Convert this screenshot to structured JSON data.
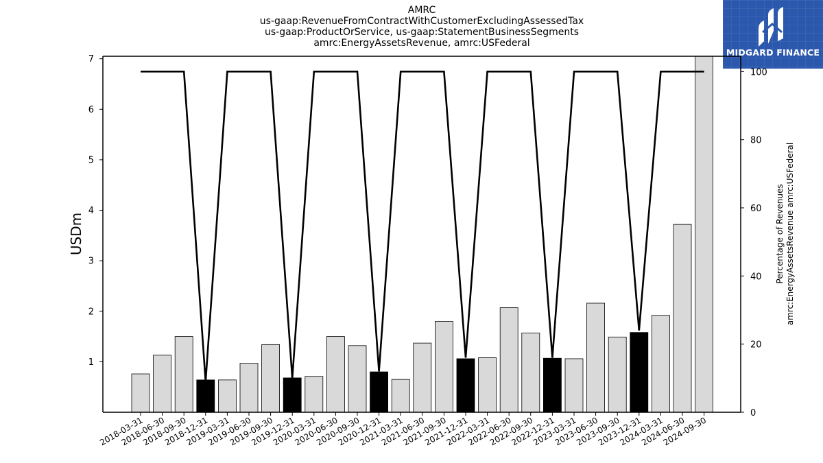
{
  "title_lines": [
    "AMRC",
    "us-gaap:RevenueFromContractWithCustomerExcludingAssessedTax",
    "us-gaap:ProductOrService, us-gaap:StatementBusinessSegments",
    "amrc:EnergyAssetsRevenue, amrc:USFederal"
  ],
  "logo": {
    "text": "MIDGARD FINANCE",
    "background": "#2b58ad"
  },
  "chart_data": {
    "type": "bar",
    "title": "AMRC",
    "ylabel": "USDm",
    "ylabel_right_lines": [
      "Percentage of Revenues",
      "amrc:EnergyAssetsRevenue amrc:USFederal"
    ],
    "ylim": [
      0,
      7.05
    ],
    "ylim_right": [
      0,
      104.5
    ],
    "yticks": [
      1,
      2,
      3,
      4,
      5,
      6,
      7
    ],
    "yticks_right": [
      0,
      20,
      40,
      60,
      80,
      100
    ],
    "categories": [
      "2018-03-31",
      "2018-06-30",
      "2018-09-30",
      "2018-12-31",
      "2019-03-31",
      "2019-06-30",
      "2019-09-30",
      "2019-12-31",
      "2020-03-31",
      "2020-06-30",
      "2020-09-30",
      "2020-12-31",
      "2021-03-31",
      "2021-06-30",
      "2021-09-30",
      "2021-12-31",
      "2022-03-31",
      "2022-06-30",
      "2022-09-30",
      "2022-12-31",
      "2023-03-31",
      "2023-06-30",
      "2023-09-30",
      "2023-12-31",
      "2024-03-31",
      "2024-06-30",
      "2024-09-30"
    ],
    "values": [
      0.76,
      1.13,
      1.5,
      0.64,
      0.64,
      0.97,
      1.34,
      0.68,
      0.71,
      1.5,
      1.32,
      0.8,
      0.65,
      1.37,
      1.8,
      1.06,
      1.08,
      2.07,
      1.57,
      1.07,
      1.06,
      2.16,
      1.49,
      1.58,
      1.92,
      3.72,
      7.05
    ],
    "highlight": [
      false,
      false,
      false,
      true,
      false,
      false,
      false,
      true,
      false,
      false,
      false,
      true,
      false,
      false,
      false,
      true,
      false,
      false,
      false,
      true,
      false,
      false,
      false,
      true,
      false,
      false,
      false
    ],
    "line_percent": [
      100,
      100,
      100,
      9,
      100,
      100,
      100,
      10,
      100,
      100,
      100,
      12,
      100,
      100,
      100,
      16,
      100,
      100,
      100,
      16,
      100,
      100,
      100,
      24,
      100,
      100,
      100
    ],
    "colors": {
      "bar": "#d9d9d9",
      "highlight_bar": "#000000",
      "line": "#000000"
    },
    "grid": false,
    "legend": "none"
  }
}
